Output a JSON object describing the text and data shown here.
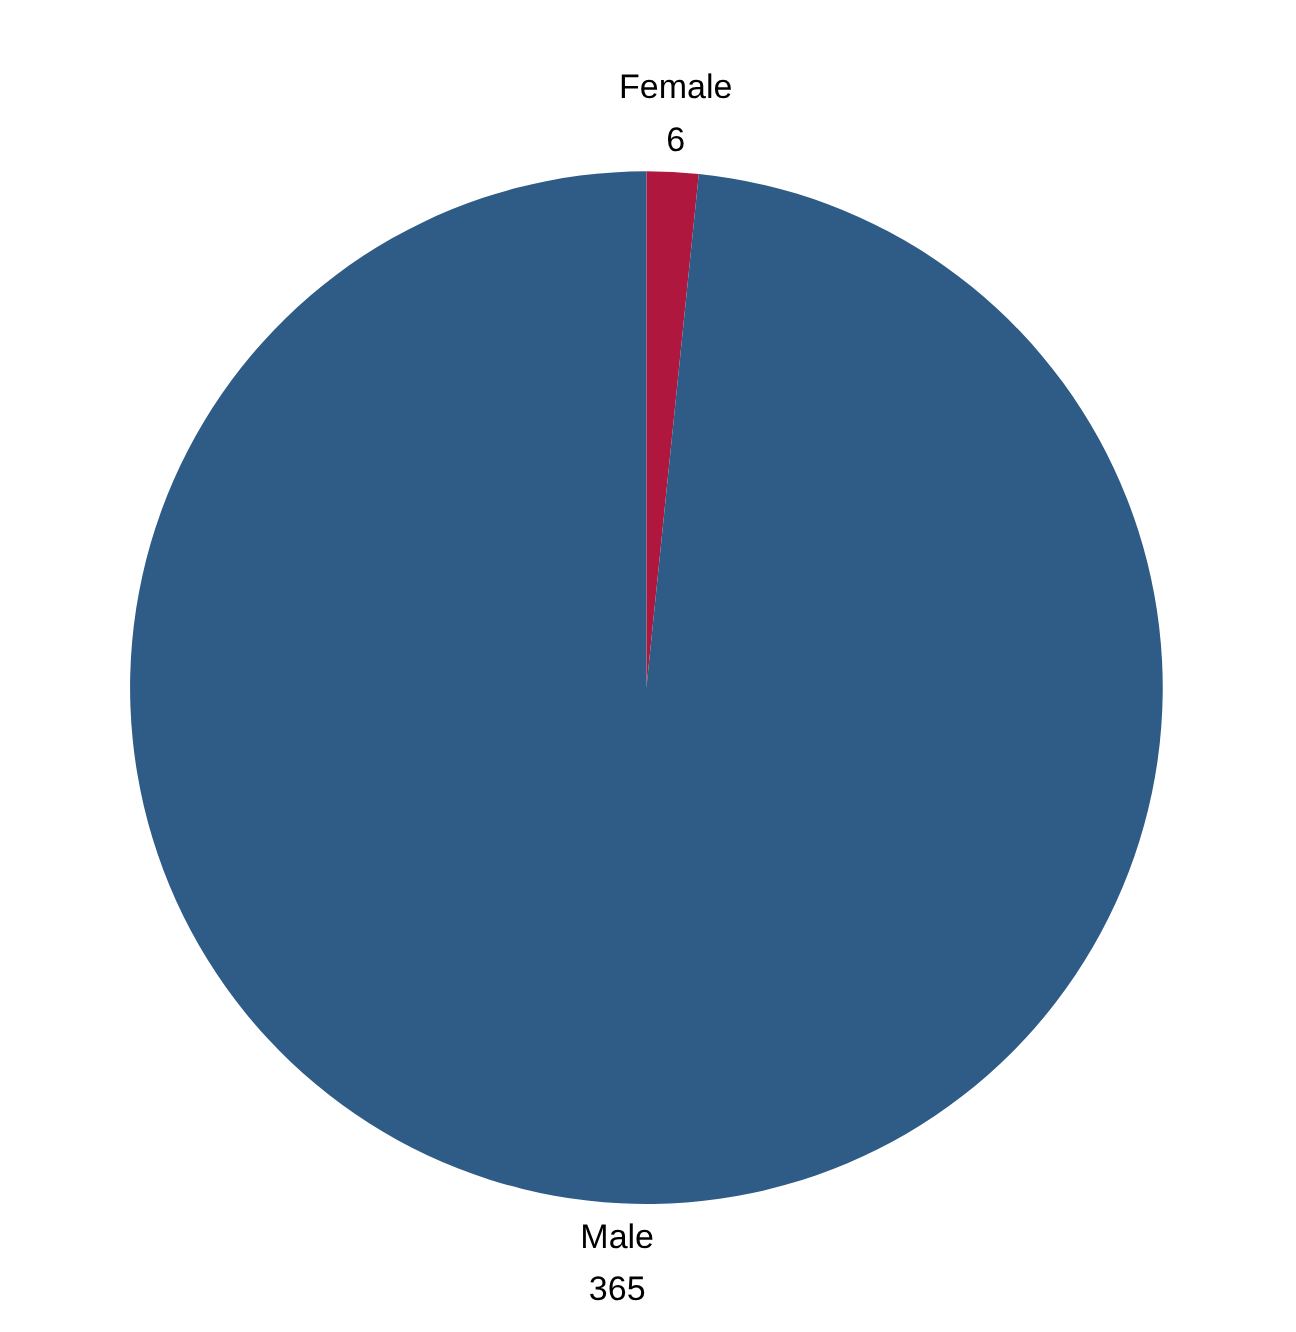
{
  "chart_data": {
    "type": "pie",
    "categories": [
      "Female",
      "Male"
    ],
    "values": [
      6,
      365
    ],
    "colors": [
      "#b0173e",
      "#2e5c87"
    ],
    "data_labels": true
  }
}
